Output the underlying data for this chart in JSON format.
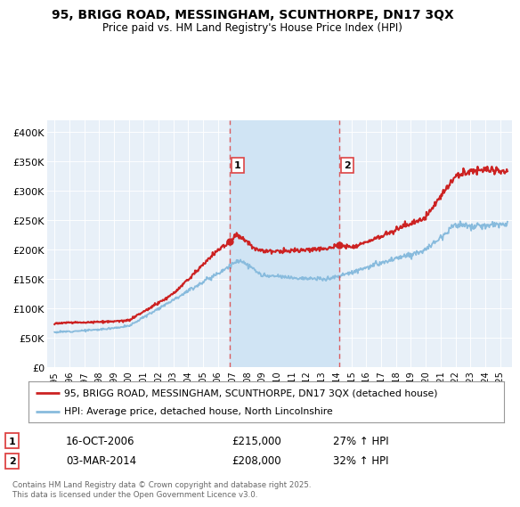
{
  "title": "95, BRIGG ROAD, MESSINGHAM, SCUNTHORPE, DN17 3QX",
  "subtitle": "Price paid vs. HM Land Registry's House Price Index (HPI)",
  "legend_label_red": "95, BRIGG ROAD, MESSINGHAM, SCUNTHORPE, DN17 3QX (detached house)",
  "legend_label_blue": "HPI: Average price, detached house, North Lincolnshire",
  "annotation1_date": "16-OCT-2006",
  "annotation1_price": "£215,000",
  "annotation1_hpi": "27% ↑ HPI",
  "annotation2_date": "03-MAR-2014",
  "annotation2_price": "£208,000",
  "annotation2_hpi": "32% ↑ HPI",
  "footer": "Contains HM Land Registry data © Crown copyright and database right 2025.\nThis data is licensed under the Open Government Licence v3.0.",
  "ylim": [
    0,
    420000
  ],
  "yticks": [
    0,
    50000,
    100000,
    150000,
    200000,
    250000,
    300000,
    350000,
    400000
  ],
  "background_color": "#ffffff",
  "plot_bg_color": "#e8f0f8",
  "red_color": "#cc2222",
  "blue_color": "#88bbdd",
  "vline_color": "#dd4444",
  "vspan_color": "#d0e4f4",
  "vline1_x": 2006.79,
  "vline2_x": 2014.17,
  "purchase1_x": 2006.79,
  "purchase1_y": 215000,
  "purchase2_x": 2014.17,
  "purchase2_y": 208000,
  "xmin": 1995.0,
  "xmax": 2025.5
}
